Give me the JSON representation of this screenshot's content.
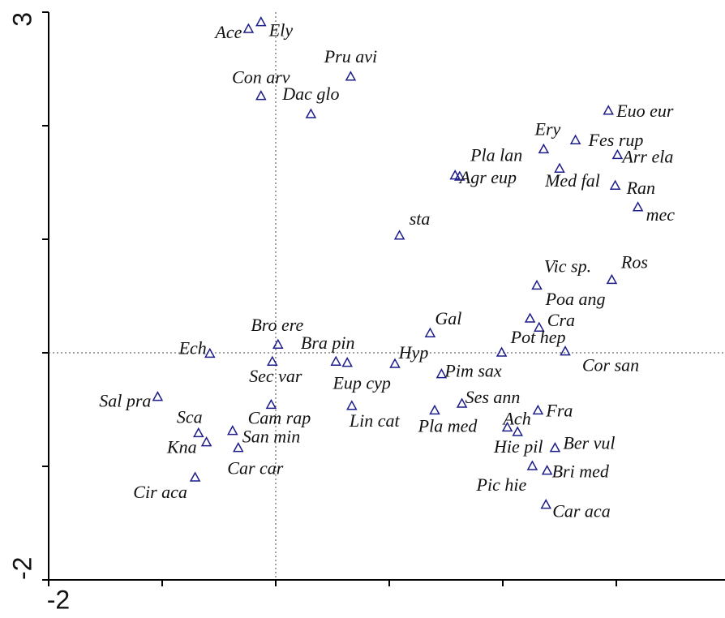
{
  "chart_data": {
    "type": "scatter",
    "xlim": [
      -2,
      4
    ],
    "ylim": [
      -2,
      3
    ],
    "xticks": [
      -2,
      4
    ],
    "yticks": [
      -2,
      3
    ],
    "minor_xticks": [
      -1,
      0,
      1,
      2,
      3
    ],
    "minor_yticks": [
      -1,
      0,
      1,
      2
    ],
    "zero_lines": true,
    "color": "#1c1c8a",
    "points": [
      {
        "label": "Ace",
        "x": -0.24,
        "y": 2.85
      },
      {
        "label": "Ely",
        "x": -0.13,
        "y": 2.91
      },
      {
        "label": "Pru avi",
        "x": 0.66,
        "y": 2.43
      },
      {
        "label": "Con arv",
        "x": -0.13,
        "y": 2.26
      },
      {
        "label": "Dac glo",
        "x": 0.31,
        "y": 2.1
      },
      {
        "label": "Euo eur",
        "x": 2.93,
        "y": 2.13
      },
      {
        "label": "Ery",
        "x": 2.36,
        "y": 1.79
      },
      {
        "label": "Fes rup",
        "x": 2.64,
        "y": 1.87
      },
      {
        "label": "Arr ela",
        "x": 3.01,
        "y": 1.74
      },
      {
        "label": "Pla lan",
        "x": 1.58,
        "y": 1.56
      },
      {
        "label": "Agr eup",
        "x": 1.62,
        "y": 1.55
      },
      {
        "label": "Med fal",
        "x": 2.5,
        "y": 1.62
      },
      {
        "label": "Ran",
        "x": 2.99,
        "y": 1.47
      },
      {
        "label": "mec",
        "x": 3.19,
        "y": 1.28
      },
      {
        "label": "sta",
        "x": 1.09,
        "y": 1.03
      },
      {
        "label": "Vic sp.",
        "x": 2.3,
        "y": 0.59
      },
      {
        "label": "Ros",
        "x": 2.96,
        "y": 0.64
      },
      {
        "label": "Poa ang",
        "x": 2.24,
        "y": 0.3
      },
      {
        "label": "Cra",
        "x": 2.32,
        "y": 0.22
      },
      {
        "label": "Gal",
        "x": 1.36,
        "y": 0.17
      },
      {
        "label": "Pot hep",
        "x": 1.99,
        "y": 0.0
      },
      {
        "label": "Cor san",
        "x": 2.55,
        "y": 0.01
      },
      {
        "label": "Bro ere",
        "x": 0.02,
        "y": 0.07
      },
      {
        "label": "Bra pin",
        "x": 0.53,
        "y": -0.08
      },
      {
        "label": "Eup cyp",
        "x": 0.63,
        "y": -0.09
      },
      {
        "label": "Ech",
        "x": -0.58,
        "y": -0.01
      },
      {
        "label": "Sec var",
        "x": -0.03,
        "y": -0.08
      },
      {
        "label": "Hyp",
        "x": 1.05,
        "y": -0.1
      },
      {
        "label": "Pim sax",
        "x": 1.46,
        "y": -0.19
      },
      {
        "label": "Sal pra",
        "x": -1.04,
        "y": -0.39
      },
      {
        "label": "Cam rap",
        "x": -0.04,
        "y": -0.46
      },
      {
        "label": "San min",
        "x": -0.38,
        "y": -0.69
      },
      {
        "label": "Car car",
        "x": -0.33,
        "y": -0.84
      },
      {
        "label": "Lin cat",
        "x": 0.67,
        "y": -0.47
      },
      {
        "label": "Ses ann",
        "x": 1.64,
        "y": -0.45
      },
      {
        "label": "Fra",
        "x": 2.31,
        "y": -0.51
      },
      {
        "label": "Pla med",
        "x": 1.4,
        "y": -0.51
      },
      {
        "label": "Ach",
        "x": 2.04,
        "y": -0.66
      },
      {
        "label": "Hie pil",
        "x": 2.13,
        "y": -0.7
      },
      {
        "label": "Sca",
        "x": -0.68,
        "y": -0.71
      },
      {
        "label": "Kna",
        "x": -0.61,
        "y": -0.79
      },
      {
        "label": "Cir aca",
        "x": -0.71,
        "y": -1.1
      },
      {
        "label": "Ber vul",
        "x": 2.46,
        "y": -0.84
      },
      {
        "label": "Bri med",
        "x": 2.39,
        "y": -1.04
      },
      {
        "label": "Pic hie",
        "x": 2.26,
        "y": -1.0
      },
      {
        "label": "Car aca",
        "x": 2.38,
        "y": -1.34
      }
    ]
  }
}
